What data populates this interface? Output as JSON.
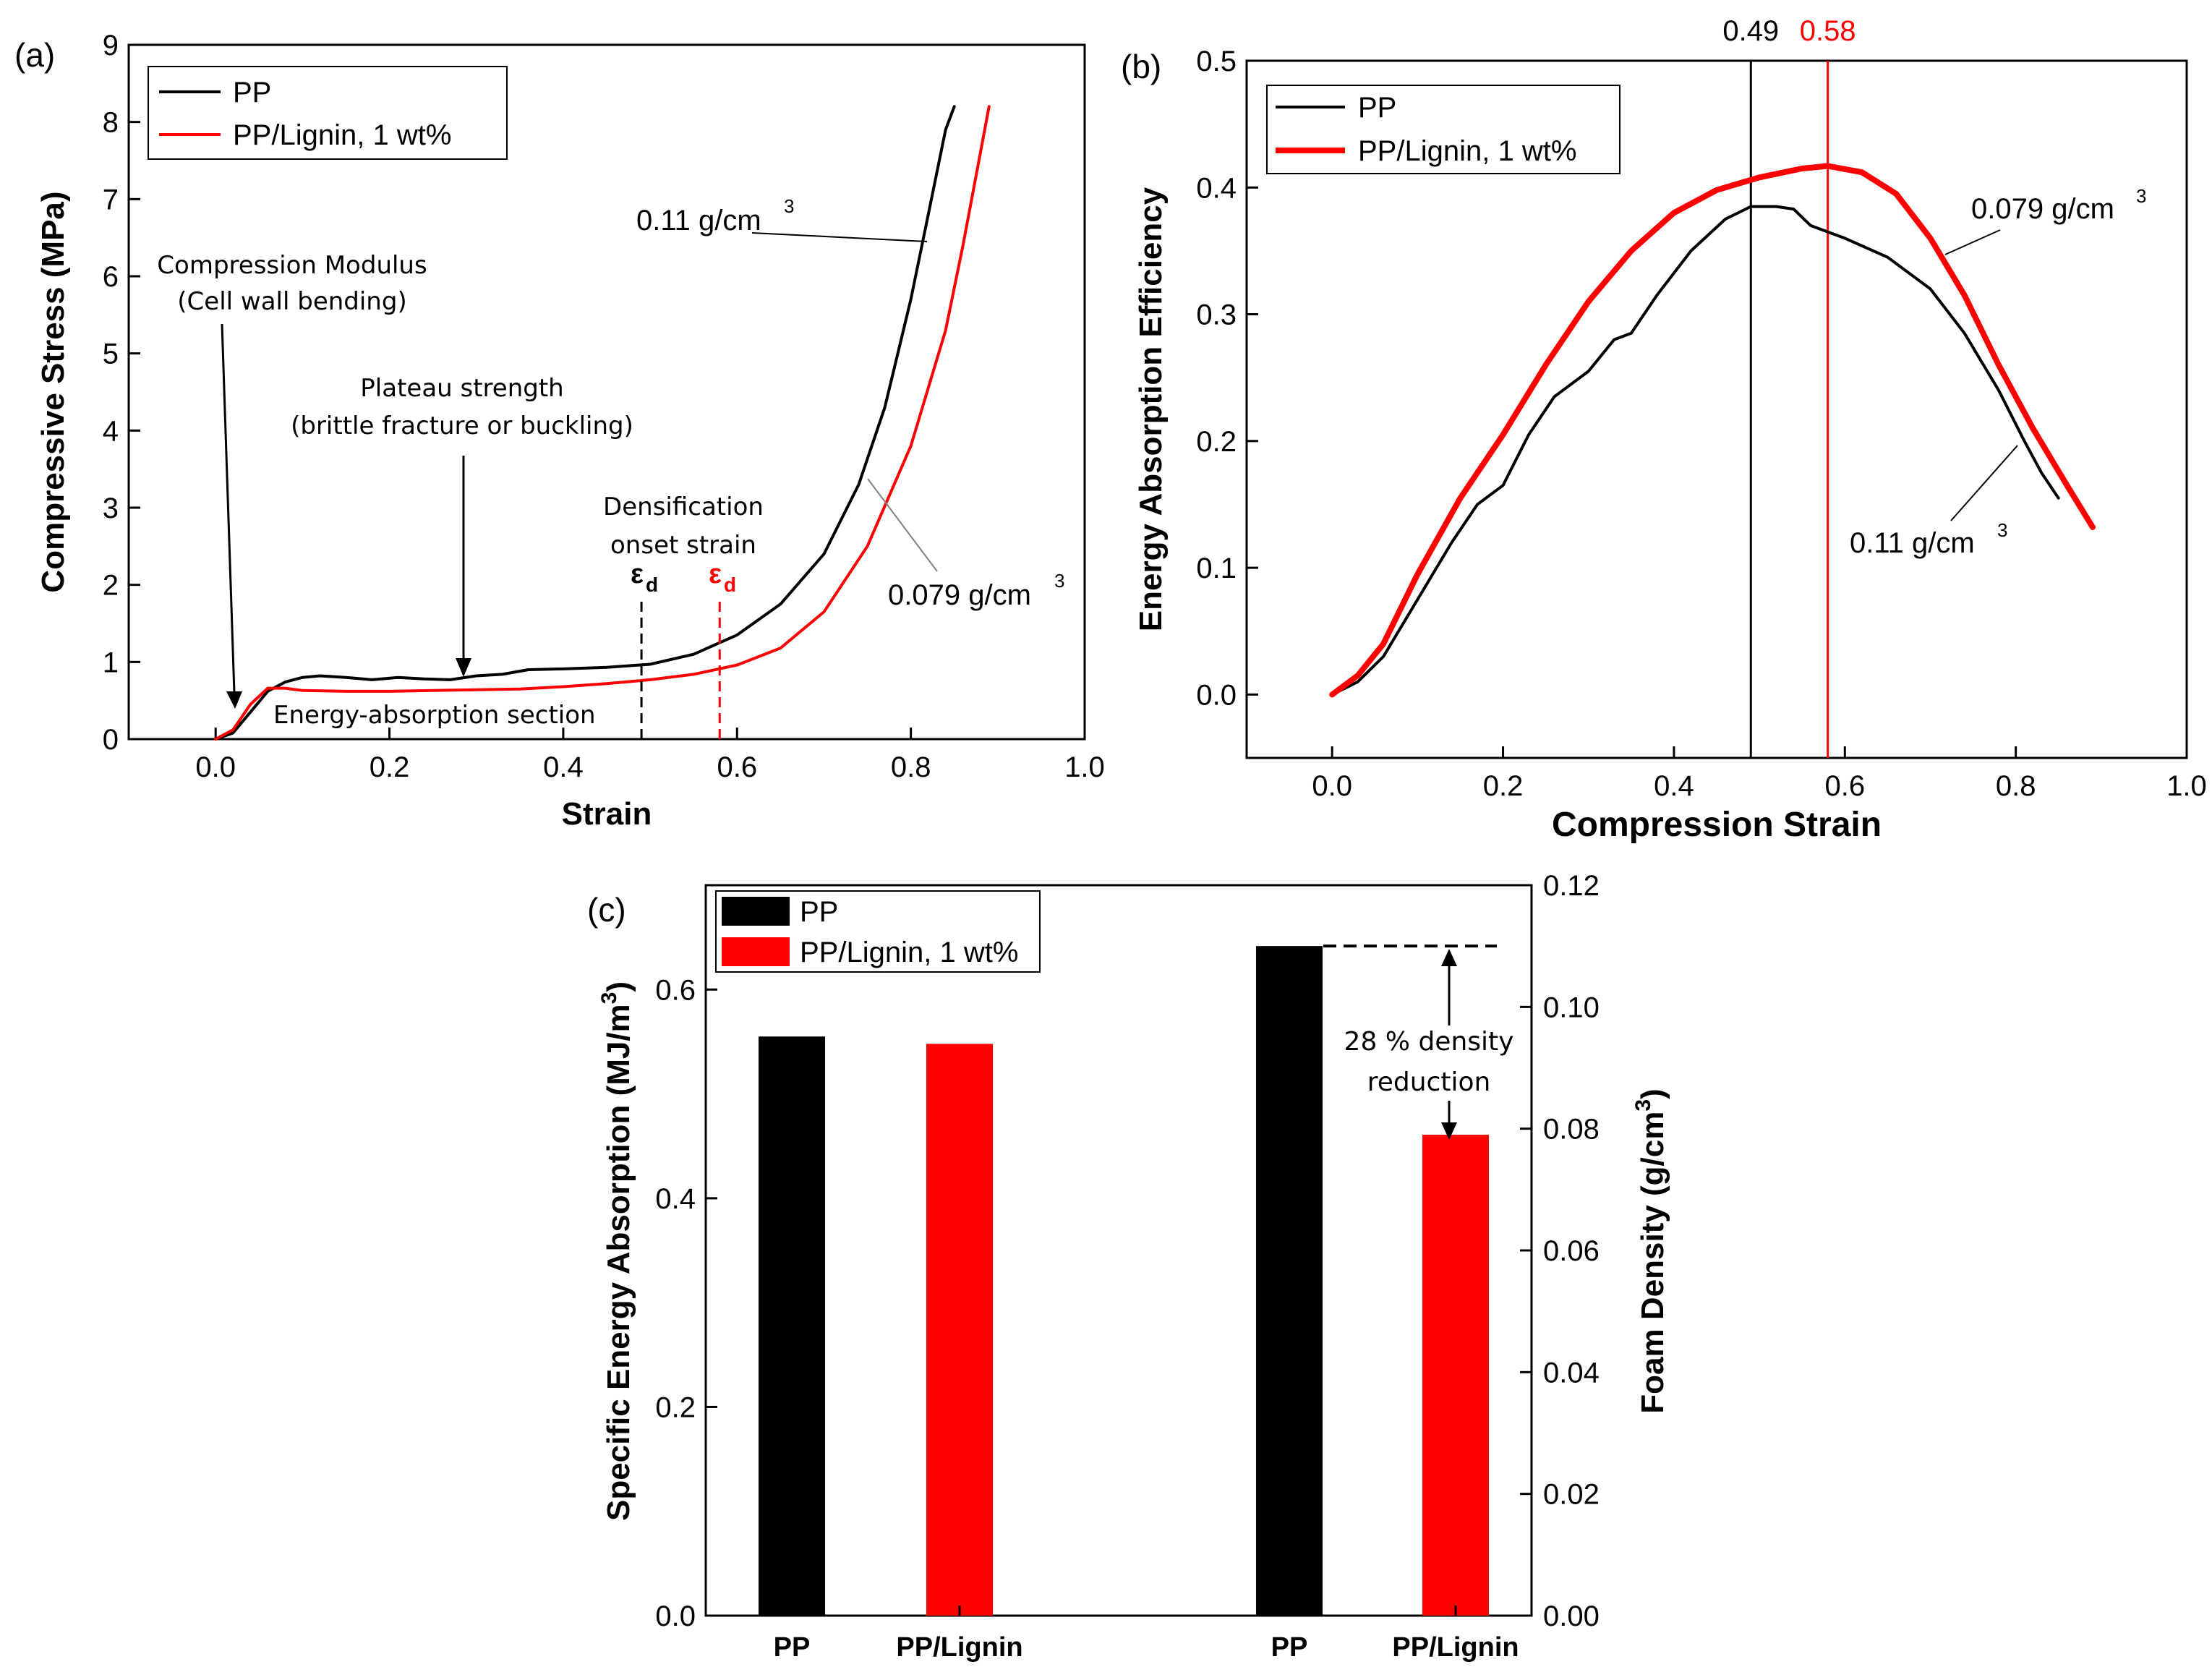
{
  "colors": {
    "pp": "#000000",
    "lignin": "#ff0000",
    "grey": "#808080"
  },
  "chart_data": [
    {
      "panel": "(a)",
      "type": "line",
      "xlabel": "Strain",
      "ylabel": "Compressive Stress (MPa)",
      "xlim": [
        -0.1,
        1.0
      ],
      "ylim": [
        0,
        9
      ],
      "xticks": [
        0.0,
        0.2,
        0.4,
        0.6,
        0.8,
        1.0
      ],
      "xtick_labels": [
        "0.0",
        "0.2",
        "0.4",
        "0.6",
        "0.8",
        "1.0"
      ],
      "yticks": [
        0,
        1,
        2,
        3,
        4,
        5,
        6,
        7,
        8,
        9
      ],
      "ytick_labels": [
        "0",
        "1",
        "2",
        "3",
        "4",
        "5",
        "6",
        "7",
        "8",
        "9"
      ],
      "legend": [
        {
          "label": "PP",
          "color": "#000000"
        },
        {
          "label": "PP/Lignin, 1 wt%",
          "color": "#ff0000"
        }
      ],
      "series": [
        {
          "name": "PP",
          "color": "#000000",
          "x": [
            0.0,
            0.02,
            0.04,
            0.06,
            0.08,
            0.1,
            0.12,
            0.15,
            0.18,
            0.21,
            0.24,
            0.27,
            0.3,
            0.33,
            0.36,
            0.4,
            0.45,
            0.5,
            0.55,
            0.6,
            0.65,
            0.7,
            0.74,
            0.77,
            0.8,
            0.82,
            0.84,
            0.85
          ],
          "y": [
            0.0,
            0.08,
            0.35,
            0.62,
            0.74,
            0.8,
            0.82,
            0.8,
            0.77,
            0.8,
            0.78,
            0.77,
            0.82,
            0.84,
            0.9,
            0.91,
            0.93,
            0.97,
            1.1,
            1.35,
            1.75,
            2.4,
            3.3,
            4.3,
            5.7,
            6.8,
            7.9,
            8.2
          ]
        },
        {
          "name": "PP/Lignin, 1 wt%",
          "color": "#ff0000",
          "x": [
            0.0,
            0.02,
            0.04,
            0.06,
            0.08,
            0.1,
            0.15,
            0.2,
            0.25,
            0.3,
            0.35,
            0.4,
            0.45,
            0.5,
            0.55,
            0.6,
            0.65,
            0.7,
            0.75,
            0.8,
            0.84,
            0.86,
            0.88,
            0.89
          ],
          "y": [
            0.0,
            0.12,
            0.45,
            0.66,
            0.66,
            0.63,
            0.62,
            0.62,
            0.63,
            0.64,
            0.65,
            0.68,
            0.72,
            0.77,
            0.84,
            0.96,
            1.18,
            1.65,
            2.5,
            3.8,
            5.3,
            6.4,
            7.6,
            8.2
          ]
        }
      ],
      "annotations": {
        "modulus": [
          "Compression Modulus",
          "(Cell wall bending)"
        ],
        "plateau": [
          "Plateau strength",
          "(brittle fracture or buckling)"
        ],
        "densification": [
          "Densification",
          "onset strain"
        ],
        "energy_section": "Energy-absorption section",
        "eps_symbol": "ε",
        "eps_sub": "d",
        "eps_pp_strain": 0.49,
        "eps_lignin_strain": 0.58,
        "density_pp": "0.11 g/cm",
        "density_lignin": "0.079 g/cm",
        "cube": "3"
      }
    },
    {
      "panel": "(b)",
      "type": "line",
      "xlabel": "Compression Strain",
      "ylabel": "Energy Absorption Efficiency",
      "xlim": [
        -0.1,
        1.0
      ],
      "ylim": [
        -0.05,
        0.5
      ],
      "xticks": [
        0.0,
        0.2,
        0.4,
        0.6,
        0.8,
        1.0
      ],
      "xtick_labels": [
        "0.0",
        "0.2",
        "0.4",
        "0.6",
        "0.8",
        "1.0"
      ],
      "yticks": [
        0.0,
        0.1,
        0.2,
        0.3,
        0.4,
        0.5
      ],
      "ytick_labels": [
        "0.0",
        "0.1",
        "0.2",
        "0.3",
        "0.4",
        "0.5"
      ],
      "top_ticks": [
        0.49,
        0.58
      ],
      "top_tick_labels": [
        "0.49",
        "0.58"
      ],
      "legend": [
        {
          "label": "PP",
          "color": "#000000"
        },
        {
          "label": "PP/Lignin, 1 wt%",
          "color": "#ff0000"
        }
      ],
      "series": [
        {
          "name": "PP",
          "color": "#000000",
          "x": [
            0.0,
            0.03,
            0.06,
            0.1,
            0.14,
            0.17,
            0.2,
            0.23,
            0.26,
            0.3,
            0.33,
            0.35,
            0.38,
            0.42,
            0.46,
            0.49,
            0.52,
            0.54,
            0.56,
            0.6,
            0.65,
            0.7,
            0.74,
            0.78,
            0.81,
            0.83,
            0.85
          ],
          "y": [
            0.0,
            0.01,
            0.03,
            0.075,
            0.12,
            0.15,
            0.165,
            0.205,
            0.235,
            0.255,
            0.28,
            0.285,
            0.315,
            0.35,
            0.375,
            0.385,
            0.385,
            0.383,
            0.37,
            0.36,
            0.345,
            0.32,
            0.285,
            0.24,
            0.2,
            0.175,
            0.155
          ]
        },
        {
          "name": "PP/Lignin, 1 wt%",
          "color": "#ff0000",
          "x": [
            0.0,
            0.03,
            0.06,
            0.1,
            0.15,
            0.2,
            0.25,
            0.3,
            0.35,
            0.4,
            0.45,
            0.5,
            0.55,
            0.58,
            0.62,
            0.66,
            0.7,
            0.74,
            0.78,
            0.82,
            0.86,
            0.89
          ],
          "y": [
            0.0,
            0.015,
            0.04,
            0.095,
            0.155,
            0.205,
            0.26,
            0.31,
            0.35,
            0.38,
            0.398,
            0.408,
            0.415,
            0.417,
            0.412,
            0.395,
            0.36,
            0.315,
            0.26,
            0.21,
            0.165,
            0.132
          ]
        }
      ],
      "annotations": {
        "density_pp": "0.11 g/cm",
        "density_lignin": "0.079 g/cm",
        "cube": "3"
      }
    },
    {
      "panel": "(c)",
      "type": "bar",
      "ylabel_left": "Specific Energy Absorption (MJ/m",
      "ylabel_right": "Foam Density (g/cm",
      "ylabel_sup": "3",
      "ylabel_close": ")",
      "categories": [
        "PP",
        "PP/Lignin",
        "PP",
        "PP/Lignin"
      ],
      "left_axis": {
        "ylim": [
          0,
          0.7
        ],
        "yticks": [
          0.0,
          0.2,
          0.4,
          0.6
        ],
        "ytick_labels": [
          "0.0",
          "0.2",
          "0.4",
          "0.6"
        ],
        "values": [
          0.555,
          0.548
        ]
      },
      "right_axis": {
        "ylim": [
          0,
          0.12
        ],
        "yticks": [
          0.0,
          0.02,
          0.04,
          0.06,
          0.08,
          0.1,
          0.12
        ],
        "ytick_labels": [
          "0.00",
          "0.02",
          "0.04",
          "0.06",
          "0.08",
          "0.10",
          "0.12"
        ],
        "values": [
          0.11,
          0.079
        ]
      },
      "bar_colors": [
        "#000000",
        "#ff0000",
        "#000000",
        "#ff0000"
      ],
      "legend": [
        {
          "label": "PP",
          "color": "#000000"
        },
        {
          "label": "PP/Lignin, 1 wt%",
          "color": "#ff0000"
        }
      ],
      "annotation": [
        "28 % density",
        "reduction"
      ]
    }
  ]
}
